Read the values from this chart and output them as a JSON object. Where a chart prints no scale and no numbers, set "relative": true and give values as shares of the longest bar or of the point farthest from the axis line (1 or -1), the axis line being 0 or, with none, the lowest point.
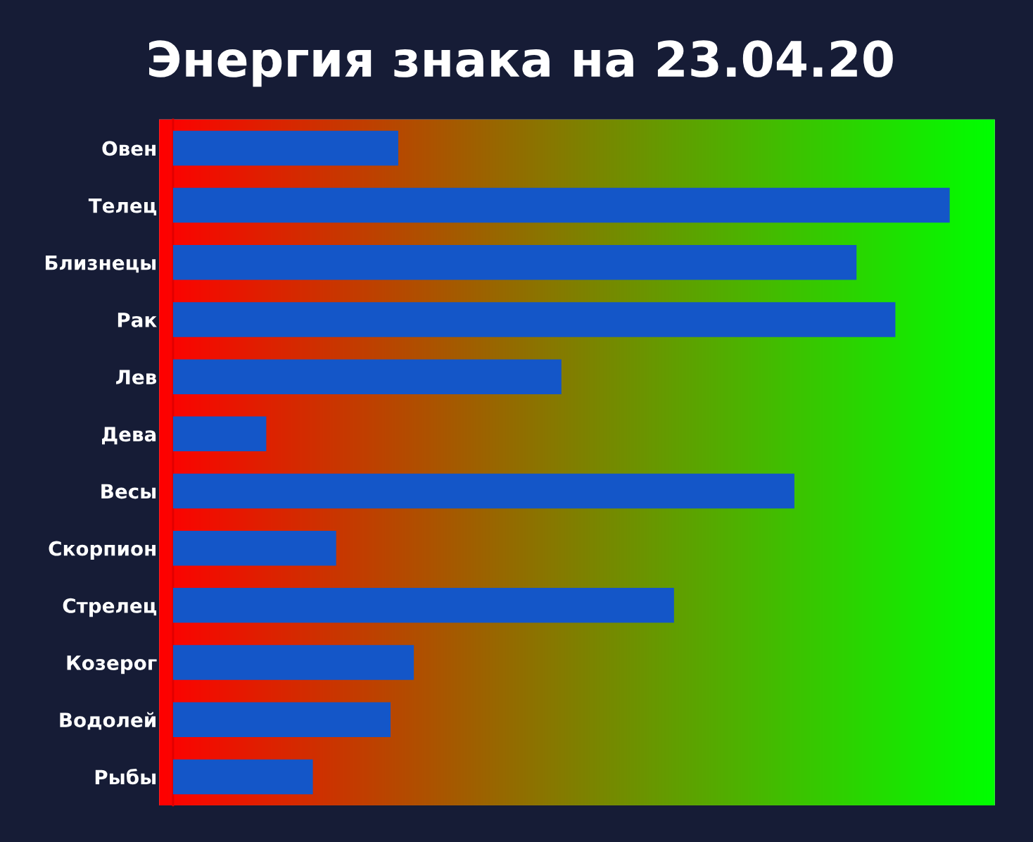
{
  "chart_data": {
    "type": "bar",
    "orientation": "horizontal",
    "relative": true,
    "title": "Энергия знака на 23.04.20",
    "categories": [
      "Овен",
      "Телец",
      "Близнецы",
      "Рак",
      "Лев",
      "Дева",
      "Весы",
      "Скорпион",
      "Стрелец",
      "Козерог",
      "Водолей",
      "Рыбы"
    ],
    "values": [
      0.29,
      1,
      0.88,
      0.93,
      0.5,
      0.12,
      0.8,
      0.21,
      0.645,
      0.31,
      0.28,
      0.18
    ],
    "color": "#1456c8",
    "tick_labels": "y"
  }
}
